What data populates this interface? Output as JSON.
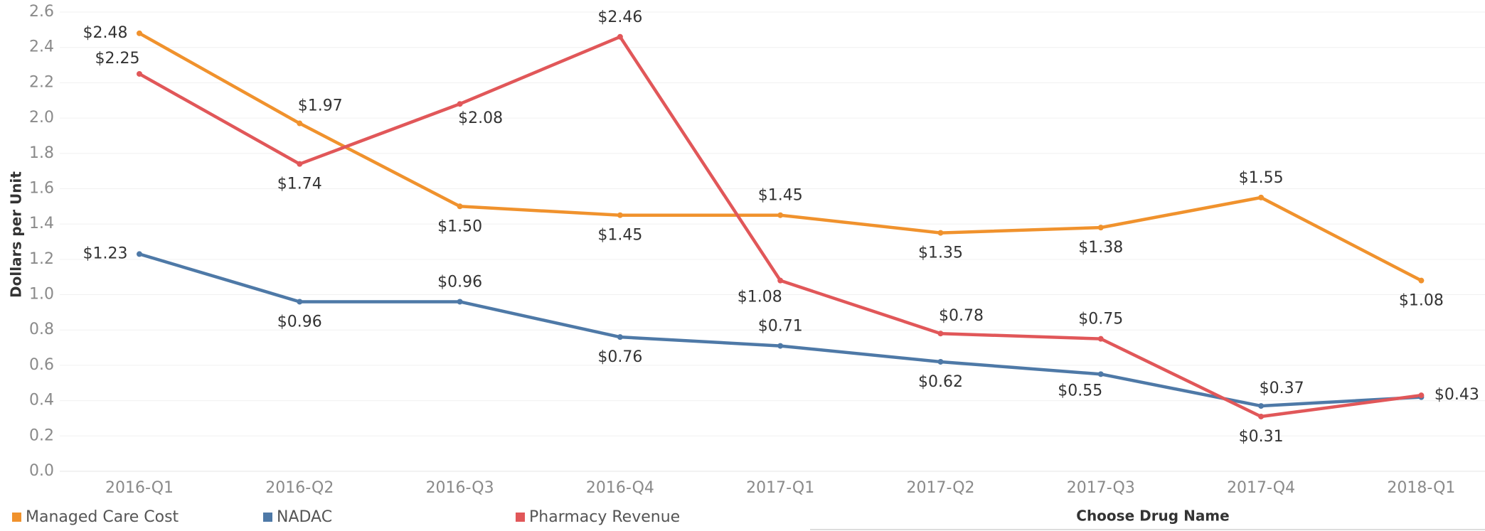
{
  "chart_data": {
    "type": "line",
    "y_label": "Dollars per Unit",
    "categories": [
      "2016-Q1",
      "2016-Q2",
      "2016-Q3",
      "2016-Q4",
      "2017-Q1",
      "2017-Q2",
      "2017-Q3",
      "2017-Q4",
      "2018-Q1"
    ],
    "series": [
      {
        "name": "Managed Care Cost",
        "color": "#f0922d",
        "values": [
          2.48,
          1.97,
          1.5,
          1.45,
          1.45,
          1.35,
          1.38,
          1.55,
          1.08
        ],
        "value_labels": [
          "$2.48",
          "$1.97",
          "$1.50",
          "$1.45",
          "$1.45",
          "$1.35",
          "$1.38",
          "$1.55",
          "$1.08"
        ]
      },
      {
        "name": "NADAC",
        "color": "#4e79a7",
        "values": [
          1.23,
          0.96,
          0.96,
          0.76,
          0.71,
          0.62,
          0.55,
          0.37,
          0.42
        ],
        "value_labels": [
          "$1.23",
          "$0.96",
          "$0.96",
          "$0.76",
          "$0.71",
          "$0.62",
          "$0.55",
          "$0.37",
          null
        ]
      },
      {
        "name": "Pharmacy Revenue",
        "color": "#e15759",
        "values": [
          2.25,
          1.74,
          2.08,
          2.46,
          1.08,
          0.78,
          0.75,
          0.31,
          0.43
        ],
        "value_labels": [
          "$2.25",
          "$1.74",
          "$2.08",
          "$2.46",
          "$1.08",
          "$0.78",
          "$0.75",
          "$0.31",
          "$0.43"
        ]
      }
    ],
    "ylim": [
      0,
      2.6
    ],
    "yticks": [
      {
        "value": 0,
        "label": "0.0"
      },
      0.2,
      0.4,
      0.6,
      0.8,
      {
        "value": 1,
        "label": "1.0"
      },
      1.2,
      1.4,
      1.6,
      1.8,
      {
        "value": 2,
        "label": "2.0"
      },
      2.2,
      2.4,
      2.6
    ],
    "grid": true,
    "legend": "bottom",
    "filter_label": "Choose Drug Name"
  }
}
